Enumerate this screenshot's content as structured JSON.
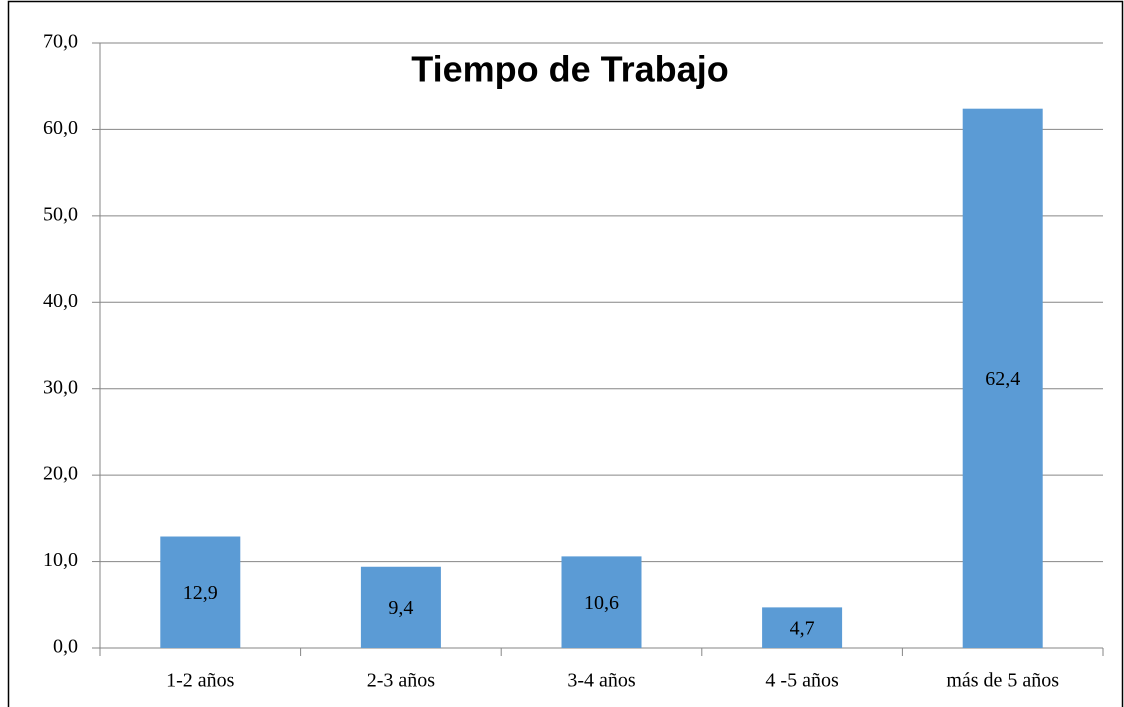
{
  "chart_data": {
    "type": "bar",
    "title": "Tiempo de Trabajo",
    "categories": [
      "1-2 años",
      "2-3 años",
      "3-4 años",
      "4 -5 años",
      "más de 5 años"
    ],
    "values": [
      12.9,
      9.4,
      10.6,
      4.7,
      62.4
    ],
    "value_labels": [
      "12,9",
      "9,4",
      "10,6",
      "4,7",
      "62,4"
    ],
    "color": "#5b9bd5",
    "ylim": [
      0,
      70
    ],
    "yticks": [
      {
        "value": 0,
        "label": "0,0"
      },
      {
        "value": 10,
        "label": "10,0"
      },
      {
        "value": 20,
        "label": "20,0"
      },
      {
        "value": 30,
        "label": "30,0"
      },
      {
        "value": 40,
        "label": "40,0"
      },
      {
        "value": 50,
        "label": "50,0"
      },
      {
        "value": 60,
        "label": "60,0"
      },
      {
        "value": 70,
        "label": "70,0"
      }
    ],
    "grid": true
  }
}
